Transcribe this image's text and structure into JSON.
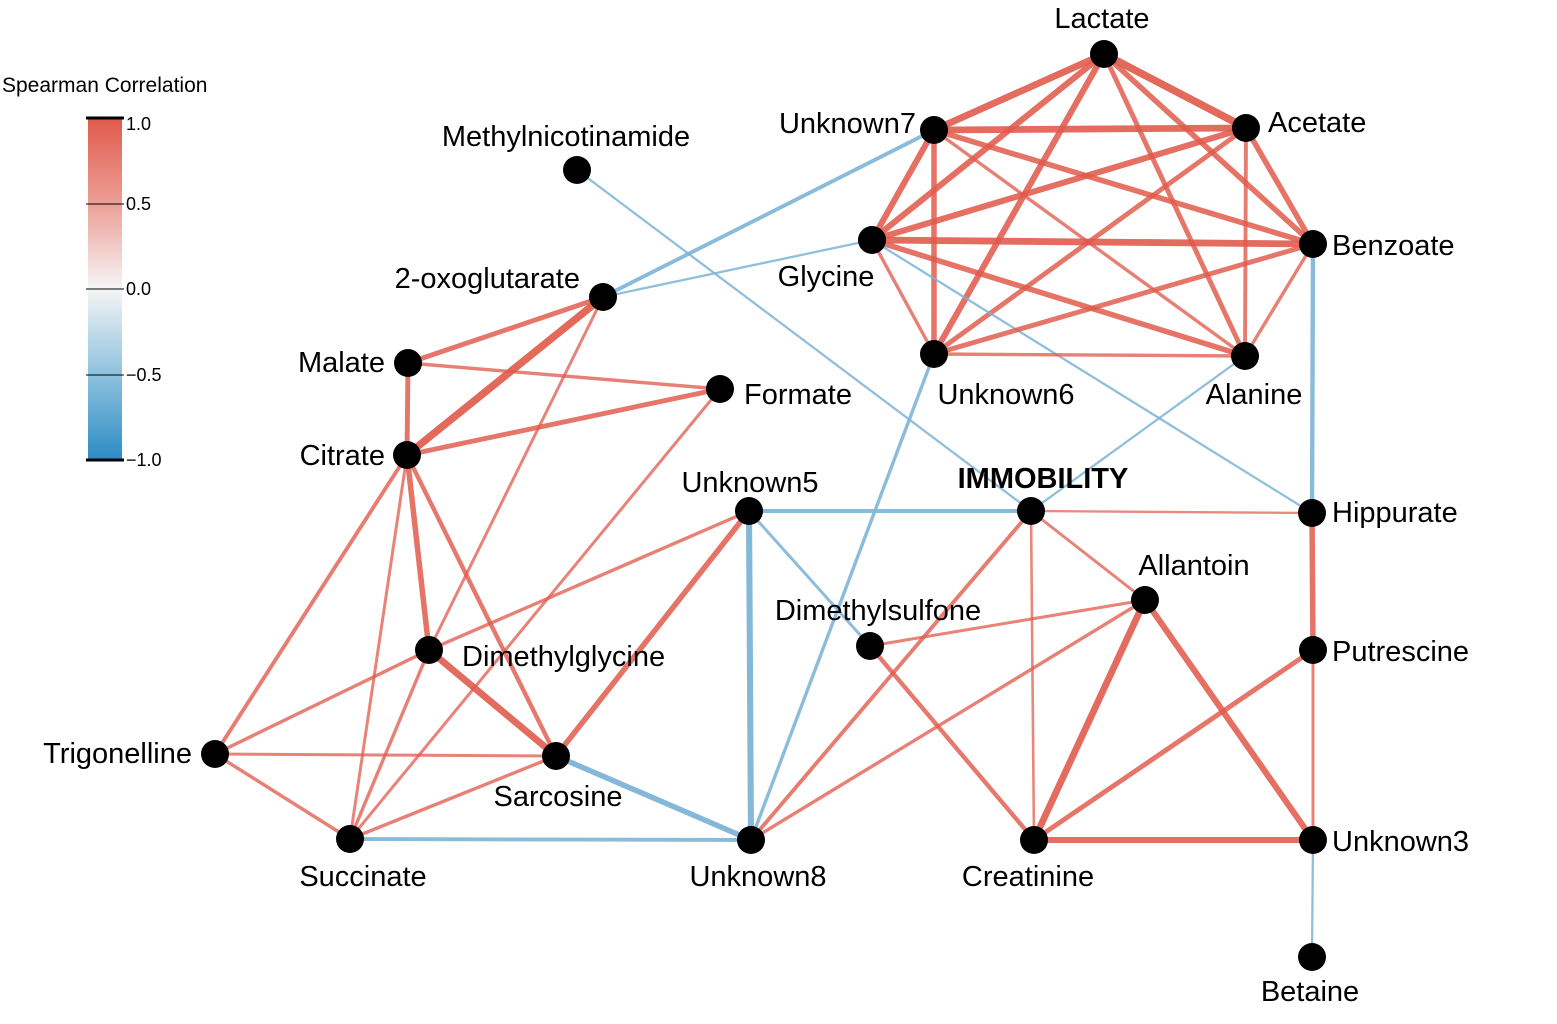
{
  "legend": {
    "title": "Spearman Correlation",
    "ticks": [
      "1.0",
      "0.5",
      "0.0",
      "−0.5",
      "−1.0"
    ],
    "colors": {
      "positive": "#e05a4b",
      "neutral": "#f5f5f5",
      "negative": "#2b8cc4"
    }
  },
  "nodes": [
    {
      "id": "lactate",
      "label": "Lactate"
    },
    {
      "id": "unknown7",
      "label": "Unknown7"
    },
    {
      "id": "acetate",
      "label": "Acetate"
    },
    {
      "id": "methylnicotinamide",
      "label": "Methylnicotinamide"
    },
    {
      "id": "glycine",
      "label": "Glycine"
    },
    {
      "id": "benzoate",
      "label": "Benzoate"
    },
    {
      "id": "oxoglutarate",
      "label": "2-oxoglutarate"
    },
    {
      "id": "malate",
      "label": "Malate"
    },
    {
      "id": "formate",
      "label": "Formate"
    },
    {
      "id": "unknown6",
      "label": "Unknown6"
    },
    {
      "id": "alanine",
      "label": "Alanine"
    },
    {
      "id": "citrate",
      "label": "Citrate"
    },
    {
      "id": "unknown5",
      "label": "Unknown5"
    },
    {
      "id": "immobility",
      "label": "IMMOBILITY"
    },
    {
      "id": "hippurate",
      "label": "Hippurate"
    },
    {
      "id": "allantoin",
      "label": "Allantoin"
    },
    {
      "id": "dimethylsulfone",
      "label": "Dimethylsulfone"
    },
    {
      "id": "dimethylglycine",
      "label": "Dimethylglycine"
    },
    {
      "id": "putrescine",
      "label": "Putrescine"
    },
    {
      "id": "trigonelline",
      "label": "Trigonelline"
    },
    {
      "id": "sarcosine",
      "label": "Sarcosine"
    },
    {
      "id": "succinate",
      "label": "Succinate"
    },
    {
      "id": "unknown8",
      "label": "Unknown8"
    },
    {
      "id": "creatinine",
      "label": "Creatinine"
    },
    {
      "id": "unknown3",
      "label": "Unknown3"
    },
    {
      "id": "betaine",
      "label": "Betaine"
    }
  ],
  "edges": [
    {
      "source": "lactate",
      "target": "acetate",
      "sign": "positive",
      "strength": 0.9
    },
    {
      "source": "lactate",
      "target": "unknown7",
      "sign": "positive",
      "strength": 0.85
    },
    {
      "source": "lactate",
      "target": "glycine",
      "sign": "positive",
      "strength": 0.8
    },
    {
      "source": "lactate",
      "target": "unknown6",
      "sign": "positive",
      "strength": 0.8
    },
    {
      "source": "lactate",
      "target": "benzoate",
      "sign": "positive",
      "strength": 0.75
    },
    {
      "source": "lactate",
      "target": "alanine",
      "sign": "positive",
      "strength": 0.7
    },
    {
      "source": "unknown7",
      "target": "acetate",
      "sign": "positive",
      "strength": 0.85
    },
    {
      "source": "unknown7",
      "target": "glycine",
      "sign": "positive",
      "strength": 0.8
    },
    {
      "source": "unknown7",
      "target": "unknown6",
      "sign": "positive",
      "strength": 0.75
    },
    {
      "source": "unknown7",
      "target": "benzoate",
      "sign": "positive",
      "strength": 0.75
    },
    {
      "source": "unknown7",
      "target": "alanine",
      "sign": "positive",
      "strength": 0.55
    },
    {
      "source": "unknown7",
      "target": "oxoglutarate",
      "sign": "negative",
      "strength": 0.6
    },
    {
      "source": "acetate",
      "target": "glycine",
      "sign": "positive",
      "strength": 0.8
    },
    {
      "source": "acetate",
      "target": "unknown6",
      "sign": "positive",
      "strength": 0.7
    },
    {
      "source": "acetate",
      "target": "benzoate",
      "sign": "positive",
      "strength": 0.75
    },
    {
      "source": "acetate",
      "target": "alanine",
      "sign": "positive",
      "strength": 0.6
    },
    {
      "source": "glycine",
      "target": "benzoate",
      "sign": "positive",
      "strength": 0.85
    },
    {
      "source": "glycine",
      "target": "unknown6",
      "sign": "positive",
      "strength": 0.55
    },
    {
      "source": "glycine",
      "target": "alanine",
      "sign": "positive",
      "strength": 0.75
    },
    {
      "source": "glycine",
      "target": "oxoglutarate",
      "sign": "negative",
      "strength": 0.4
    },
    {
      "source": "glycine",
      "target": "hippurate",
      "sign": "negative",
      "strength": 0.4
    },
    {
      "source": "methylnicotinamide",
      "target": "immobility",
      "sign": "negative",
      "strength": 0.4
    },
    {
      "source": "benzoate",
      "target": "unknown6",
      "sign": "positive",
      "strength": 0.7
    },
    {
      "source": "benzoate",
      "target": "alanine",
      "sign": "positive",
      "strength": 0.55
    },
    {
      "source": "benzoate",
      "target": "hippurate",
      "sign": "negative",
      "strength": 0.65
    },
    {
      "source": "unknown6",
      "target": "alanine",
      "sign": "positive",
      "strength": 0.55
    },
    {
      "source": "unknown6",
      "target": "unknown8",
      "sign": "negative",
      "strength": 0.55
    },
    {
      "source": "alanine",
      "target": "immobility",
      "sign": "negative",
      "strength": 0.4
    },
    {
      "source": "oxoglutarate",
      "target": "malate",
      "sign": "positive",
      "strength": 0.7
    },
    {
      "source": "oxoglutarate",
      "target": "citrate",
      "sign": "positive",
      "strength": 0.9
    },
    {
      "source": "oxoglutarate",
      "target": "dimethylglycine",
      "sign": "positive",
      "strength": 0.5
    },
    {
      "source": "malate",
      "target": "formate",
      "sign": "positive",
      "strength": 0.55
    },
    {
      "source": "malate",
      "target": "citrate",
      "sign": "positive",
      "strength": 0.7
    },
    {
      "source": "citrate",
      "target": "formate",
      "sign": "positive",
      "strength": 0.7
    },
    {
      "source": "citrate",
      "target": "dimethylglycine",
      "sign": "positive",
      "strength": 0.75
    },
    {
      "source": "citrate",
      "target": "sarcosine",
      "sign": "positive",
      "strength": 0.65
    },
    {
      "source": "citrate",
      "target": "trigonelline",
      "sign": "positive",
      "strength": 0.6
    },
    {
      "source": "citrate",
      "target": "succinate",
      "sign": "positive",
      "strength": 0.5
    },
    {
      "source": "formate",
      "target": "succinate",
      "sign": "positive",
      "strength": 0.5
    },
    {
      "source": "unknown5",
      "target": "immobility",
      "sign": "negative",
      "strength": 0.6
    },
    {
      "source": "unknown5",
      "target": "unknown8",
      "sign": "negative",
      "strength": 0.8
    },
    {
      "source": "unknown5",
      "target": "dimethylsulfone",
      "sign": "negative",
      "strength": 0.5
    },
    {
      "source": "unknown5",
      "target": "sarcosine",
      "sign": "positive",
      "strength": 0.75
    },
    {
      "source": "unknown5",
      "target": "dimethylglycine",
      "sign": "positive",
      "strength": 0.55
    },
    {
      "source": "immobility",
      "target": "hippurate",
      "sign": "positive",
      "strength": 0.4
    },
    {
      "source": "immobility",
      "target": "allantoin",
      "sign": "positive",
      "strength": 0.5
    },
    {
      "source": "immobility",
      "target": "creatinine",
      "sign": "positive",
      "strength": 0.45
    },
    {
      "source": "immobility",
      "target": "unknown8",
      "sign": "positive",
      "strength": 0.6
    },
    {
      "source": "hippurate",
      "target": "putrescine",
      "sign": "positive",
      "strength": 0.75
    },
    {
      "source": "allantoin",
      "target": "dimethylsulfone",
      "sign": "positive",
      "strength": 0.5
    },
    {
      "source": "allantoin",
      "target": "creatinine",
      "sign": "positive",
      "strength": 0.85
    },
    {
      "source": "allantoin",
      "target": "unknown3",
      "sign": "positive",
      "strength": 0.8
    },
    {
      "source": "allantoin",
      "target": "unknown8",
      "sign": "positive",
      "strength": 0.55
    },
    {
      "source": "dimethylsulfone",
      "target": "creatinine",
      "sign": "positive",
      "strength": 0.65
    },
    {
      "source": "dimethylglycine",
      "target": "sarcosine",
      "sign": "positive",
      "strength": 0.85
    },
    {
      "source": "dimethylglycine",
      "target": "trigonelline",
      "sign": "positive",
      "strength": 0.55
    },
    {
      "source": "dimethylglycine",
      "target": "succinate",
      "sign": "positive",
      "strength": 0.55
    },
    {
      "source": "putrescine",
      "target": "creatinine",
      "sign": "positive",
      "strength": 0.7
    },
    {
      "source": "putrescine",
      "target": "unknown3",
      "sign": "positive",
      "strength": 0.5
    },
    {
      "source": "trigonelline",
      "target": "sarcosine",
      "sign": "positive",
      "strength": 0.5
    },
    {
      "source": "trigonelline",
      "target": "succinate",
      "sign": "positive",
      "strength": 0.55
    },
    {
      "source": "sarcosine",
      "target": "succinate",
      "sign": "positive",
      "strength": 0.55
    },
    {
      "source": "sarcosine",
      "target": "unknown8",
      "sign": "negative",
      "strength": 0.75
    },
    {
      "source": "succinate",
      "target": "unknown8",
      "sign": "negative",
      "strength": 0.6
    },
    {
      "source": "creatinine",
      "target": "unknown3",
      "sign": "positive",
      "strength": 0.8
    },
    {
      "source": "unknown3",
      "target": "betaine",
      "sign": "negative",
      "strength": 0.4
    }
  ]
}
